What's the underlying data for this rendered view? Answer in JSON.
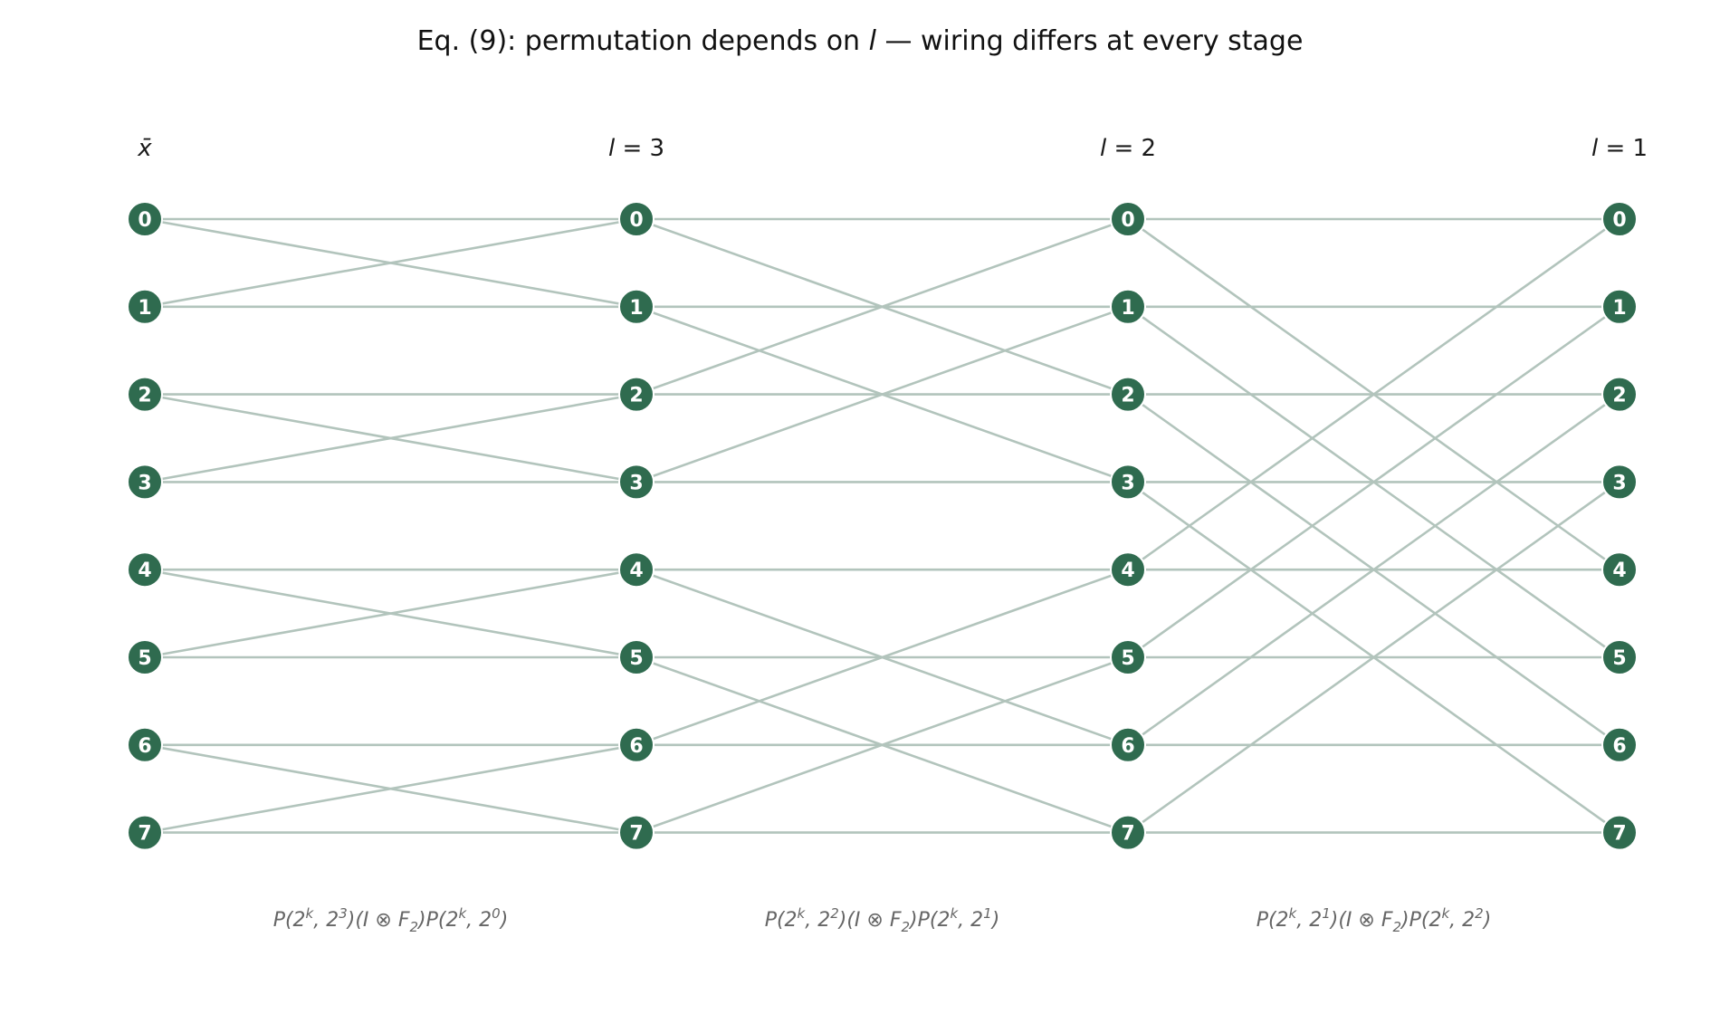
{
  "title": {
    "prefix": "Eq. (9): permutation depends on ",
    "var": "l",
    "suffix": " — wiring differs at every stage"
  },
  "columns": [
    {
      "label_var": "x̄",
      "label_rest": ""
    },
    {
      "label_var": "l",
      "label_rest": " = 3"
    },
    {
      "label_var": "l",
      "label_rest": " = 2"
    },
    {
      "label_var": "l",
      "label_rest": " = 1"
    }
  ],
  "node_labels": [
    "0",
    "1",
    "2",
    "3",
    "4",
    "5",
    "6",
    "7"
  ],
  "stages": [
    {
      "stride": 1,
      "label": [
        "P(2",
        "k",
        ", 2",
        "3",
        ")(I ⊗ F",
        "2",
        ")P(2",
        "k",
        ", 2",
        "0",
        ")"
      ]
    },
    {
      "stride": 2,
      "label": [
        "P(2",
        "k",
        ", 2",
        "2",
        ")(I ⊗ F",
        "2",
        ")P(2",
        "k",
        ", 2",
        "1",
        ")"
      ]
    },
    {
      "stride": 4,
      "label": [
        "P(2",
        "k",
        ", 2",
        "1",
        ")(I ⊗ F",
        "2",
        ")P(2",
        "k",
        ", 2",
        "2",
        ")"
      ]
    }
  ],
  "colors": {
    "node_fill": "#2f6b4f",
    "node_stroke": "#ffffff",
    "edge": "#b2c4bc"
  }
}
